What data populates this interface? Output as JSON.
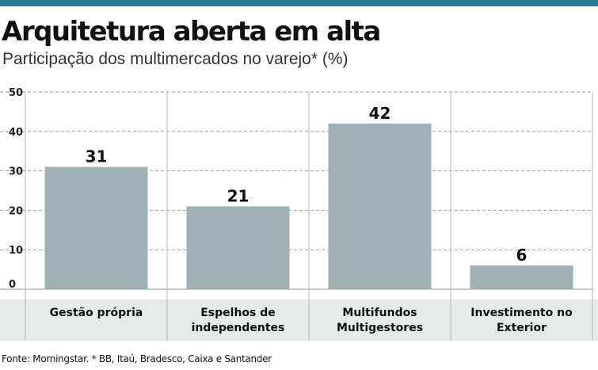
{
  "title": "Arquitetura aberta em alta",
  "subtitle": "Participação dos multimercados no varejo* (%)",
  "source": "Fonte: Morningstar. * BB, Itaú, Bradesco, Caixa e Santander",
  "colors": {
    "accent_bar": "#2a7f96",
    "bar": "#9fb0b6",
    "category_band": "#e7eaeb"
  },
  "chart_data": {
    "type": "bar",
    "categories": [
      [
        "Gestão própria"
      ],
      [
        "Espelhos de",
        "independentes"
      ],
      [
        "Multifundos",
        "Multigestores"
      ],
      [
        "Investimento no",
        "Exterior"
      ]
    ],
    "values": [
      31,
      21,
      42,
      6
    ],
    "value_labels": [
      "31",
      "21",
      "42",
      "6"
    ],
    "yticks": [
      "0",
      "10",
      "20",
      "30",
      "40",
      "50"
    ],
    "ylim": [
      0,
      50
    ],
    "grid": true
  }
}
